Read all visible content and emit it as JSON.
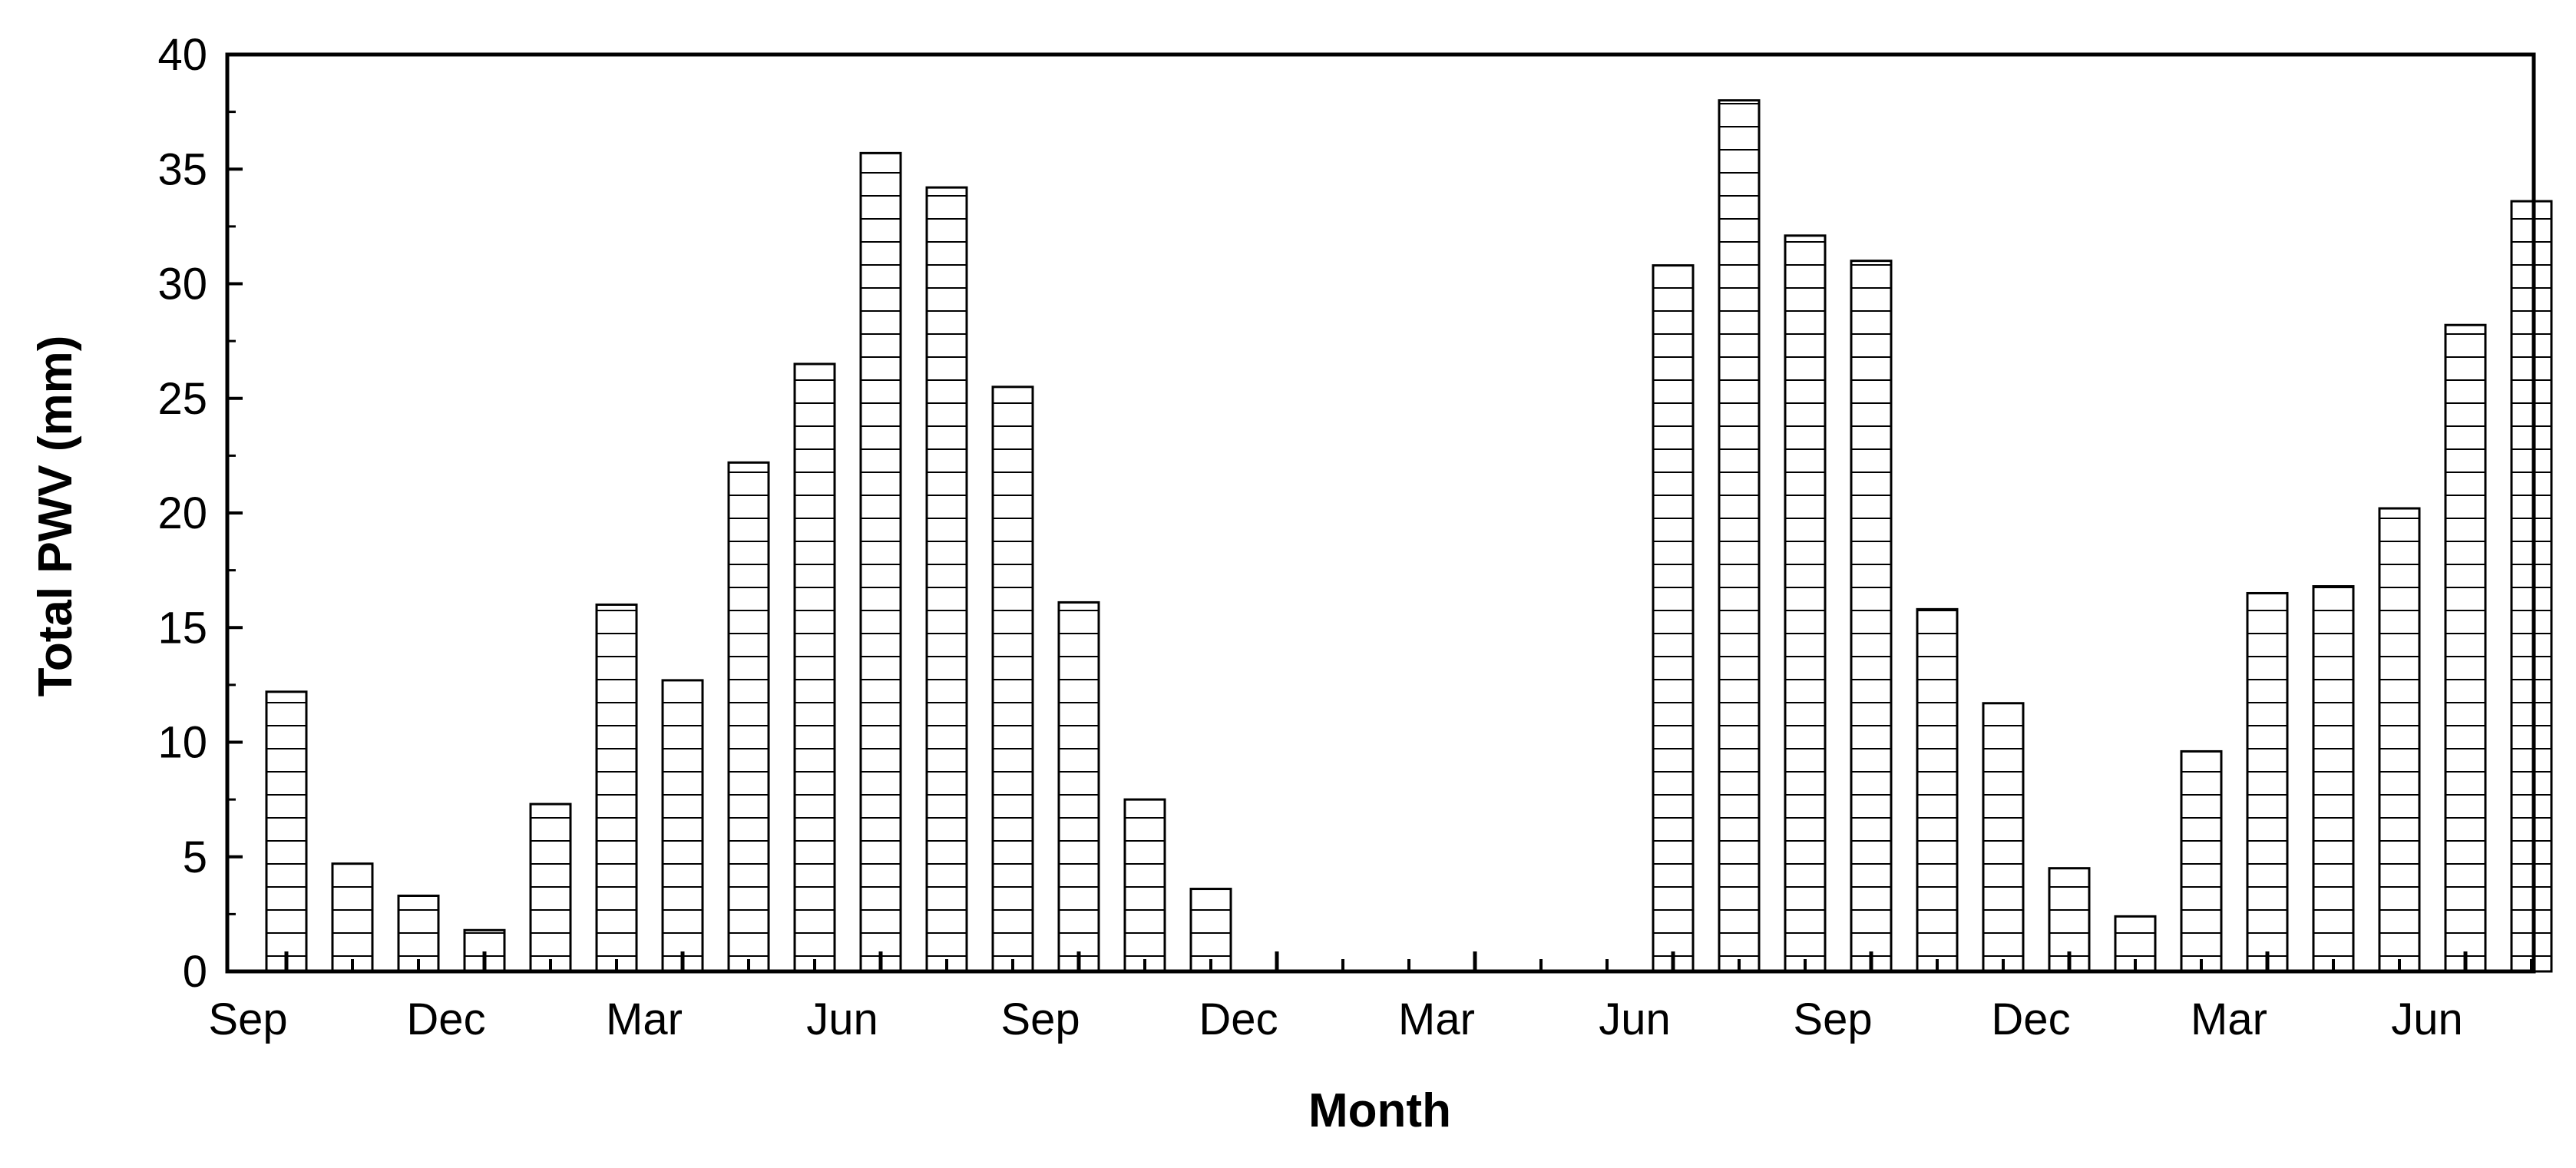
{
  "colors": {
    "bar_fill": "#ffffff",
    "bar_stroke": "#000000",
    "hatch": "#000000",
    "axis": "#000000",
    "background": "#ffffff"
  },
  "chart_data": {
    "type": "bar",
    "title": "",
    "xlabel": "Month",
    "ylabel": "Total PWV (mm)",
    "ylim": [
      0,
      40
    ],
    "yticks": [
      0,
      5,
      10,
      15,
      20,
      25,
      30,
      35,
      40
    ],
    "grid": false,
    "legend": "none",
    "bar_pattern": "horizontal-hatch",
    "x_tick_labels": [
      "Sep",
      "Dec",
      "Mar",
      "Jun",
      "Sep",
      "Dec",
      "Mar",
      "Jun",
      "Sep",
      "Dec",
      "Mar",
      "Jun"
    ],
    "x_tick_label_every_n_bars": 3,
    "categories": [
      "Sep",
      "Oct",
      "Nov",
      "Dec",
      "Jan",
      "Feb",
      "Mar",
      "Apr",
      "May",
      "Jun",
      "Jul",
      "Aug",
      "Sep",
      "Oct",
      "Nov",
      "Dec",
      "Jan",
      "Feb",
      "Mar",
      "Apr",
      "May",
      "Jun",
      "Jul",
      "Aug",
      "Sep",
      "Oct",
      "Nov",
      "Dec",
      "Jan",
      "Feb",
      "Mar",
      "Apr",
      "May",
      "Jun",
      "Jul"
    ],
    "values": [
      12.2,
      4.7,
      3.3,
      1.8,
      7.3,
      16.0,
      12.7,
      22.2,
      26.5,
      35.7,
      34.2,
      25.5,
      16.1,
      7.5,
      3.6,
      null,
      null,
      null,
      null,
      null,
      null,
      30.8,
      38.0,
      32.1,
      31.0,
      15.8,
      11.7,
      4.5,
      2.4,
      9.6,
      16.5,
      16.8,
      20.2,
      28.2,
      33.6
    ]
  }
}
